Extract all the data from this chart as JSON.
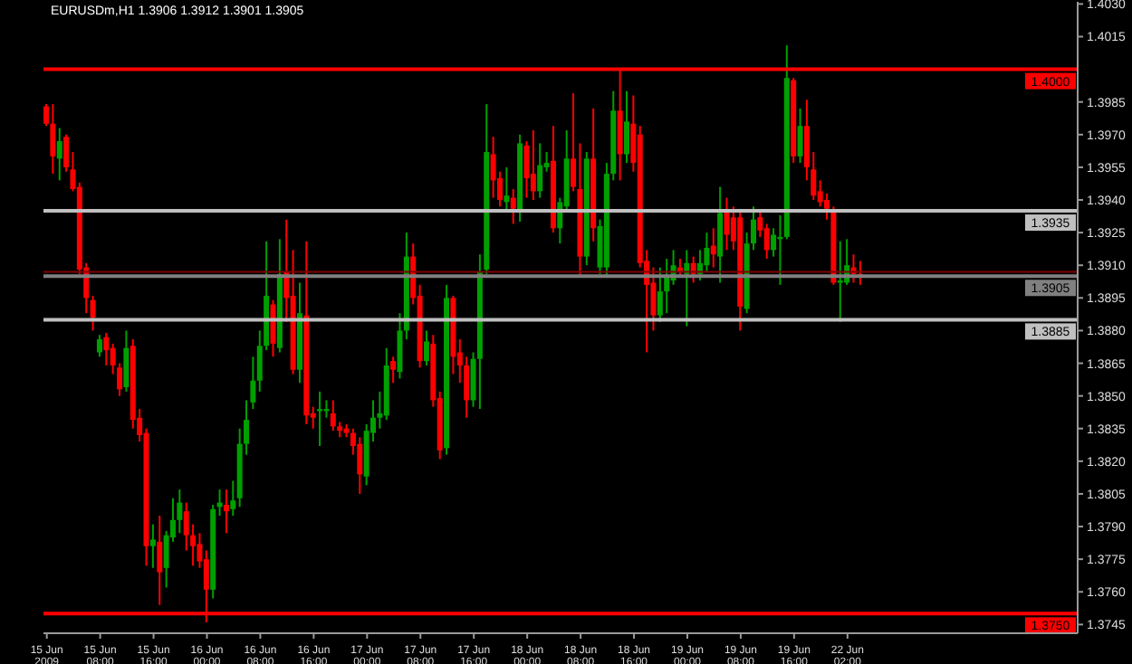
{
  "chart_data": {
    "type": "candlestick",
    "title": "EURUSDm,H1  1.3906 1.3912 1.3901 1.3905",
    "categories": [
      "15 Jun 2009",
      null,
      null,
      null,
      null,
      null,
      null,
      null,
      "15 Jun 08:00",
      null,
      null,
      null,
      null,
      null,
      null,
      null,
      "15 Jun 16:00",
      null,
      null,
      null,
      null,
      null,
      null,
      null,
      "16 Jun 00:00",
      null,
      null,
      null,
      null,
      null,
      null,
      null,
      "16 Jun 08:00",
      null,
      null,
      null,
      null,
      null,
      null,
      null,
      "16 Jun 16:00",
      null,
      null,
      null,
      null,
      null,
      null,
      null,
      "17 Jun 00:00",
      null,
      null,
      null,
      null,
      null,
      null,
      null,
      "17 Jun 08:00",
      null,
      null,
      null,
      null,
      null,
      null,
      null,
      "17 Jun 16:00",
      null,
      null,
      null,
      null,
      null,
      null,
      null,
      "18 Jun 00:00",
      null,
      null,
      null,
      null,
      null,
      null,
      null,
      "18 Jun 08:00",
      null,
      null,
      null,
      null,
      null,
      null,
      null,
      "18 Jun 16:00",
      null,
      null,
      null,
      null,
      null,
      null,
      null,
      "19 Jun 00:00",
      null,
      null,
      null,
      null,
      null,
      null,
      null,
      "19 Jun 08:00",
      null,
      null,
      null,
      null,
      null,
      null,
      null,
      "19 Jun 16:00",
      null,
      null,
      null,
      null,
      null,
      null,
      null,
      "22 Jun 02:00",
      null,
      null,
      null,
      null,
      null,
      null,
      null,
      null,
      null,
      null,
      null,
      null,
      null,
      null,
      null,
      null,
      null,
      null,
      null,
      null,
      null,
      null,
      null,
      null,
      null,
      null,
      null,
      null,
      null,
      null,
      null,
      null,
      null,
      null
    ],
    "ohlc": [
      [
        1.3983,
        1.3984,
        1.3974,
        1.3975
      ],
      [
        1.3975,
        1.3984,
        1.3952,
        1.396
      ],
      [
        1.3959,
        1.3973,
        1.3949,
        1.3967
      ],
      [
        1.3969,
        1.397,
        1.3953,
        1.3955
      ],
      [
        1.3954,
        1.3962,
        1.3944,
        1.3945
      ],
      [
        1.3946,
        1.3948,
        1.3906,
        1.3908
      ],
      [
        1.3909,
        1.3911,
        1.3888,
        1.3895
      ],
      [
        1.3894,
        1.3896,
        1.388,
        1.3886
      ],
      [
        1.387,
        1.3878,
        1.3868,
        1.3876
      ],
      [
        1.3877,
        1.3879,
        1.3864,
        1.3871
      ],
      [
        1.3872,
        1.3874,
        1.386,
        1.3864
      ],
      [
        1.3863,
        1.3865,
        1.385,
        1.3853
      ],
      [
        1.3854,
        1.388,
        1.3852,
        1.3872
      ],
      [
        1.3873,
        1.3876,
        1.3835,
        1.3839
      ],
      [
        1.384,
        1.3844,
        1.3829,
        1.3832
      ],
      [
        1.3833,
        1.3835,
        1.3772,
        1.3781
      ],
      [
        1.3781,
        1.3791,
        1.3771,
        1.3784
      ],
      [
        1.3783,
        1.3795,
        1.3754,
        1.3769
      ],
      [
        1.3771,
        1.3788,
        1.3762,
        1.3786
      ],
      [
        1.3785,
        1.3803,
        1.3783,
        1.3793
      ],
      [
        1.3793,
        1.3807,
        1.3787,
        1.3801
      ],
      [
        1.3797,
        1.3801,
        1.3779,
        1.3786
      ],
      [
        1.3786,
        1.3791,
        1.3772,
        1.3781
      ],
      [
        1.3782,
        1.3787,
        1.3771,
        1.3774
      ],
      [
        1.3775,
        1.3779,
        1.3746,
        1.3761
      ],
      [
        1.3761,
        1.38,
        1.3757,
        1.3798
      ],
      [
        1.3799,
        1.3807,
        1.3795,
        1.3801
      ],
      [
        1.38,
        1.3807,
        1.3787,
        1.3797
      ],
      [
        1.3798,
        1.3811,
        1.3795,
        1.3802
      ],
      [
        1.3803,
        1.3835,
        1.3799,
        1.3828
      ],
      [
        1.3828,
        1.3848,
        1.3823,
        1.3839
      ],
      [
        1.3847,
        1.3868,
        1.3844,
        1.3857
      ],
      [
        1.3857,
        1.388,
        1.3852,
        1.3873
      ],
      [
        1.3873,
        1.3921,
        1.3871,
        1.3896
      ],
      [
        1.3892,
        1.3894,
        1.3868,
        1.3874
      ],
      [
        1.3872,
        1.3922,
        1.387,
        1.3906
      ],
      [
        1.3907,
        1.3931,
        1.3884,
        1.3895
      ],
      [
        1.3896,
        1.3917,
        1.386,
        1.3862
      ],
      [
        1.3862,
        1.3902,
        1.3856,
        1.3888
      ],
      [
        1.3887,
        1.3921,
        1.3837,
        1.3841
      ],
      [
        1.3842,
        1.3845,
        1.3835,
        1.384
      ],
      [
        1.3843,
        1.3852,
        1.3827,
        1.3844
      ],
      [
        1.3843,
        1.3848,
        1.384,
        1.3844
      ],
      [
        1.3842,
        1.3848,
        1.3834,
        1.3836
      ],
      [
        1.3836,
        1.3838,
        1.3831,
        1.3834
      ],
      [
        1.3835,
        1.3837,
        1.3831,
        1.3833
      ],
      [
        1.3833,
        1.3835,
        1.3823,
        1.3827
      ],
      [
        1.3828,
        1.3831,
        1.3805,
        1.3814
      ],
      [
        1.3813,
        1.3837,
        1.3809,
        1.3834
      ],
      [
        1.3833,
        1.3848,
        1.3829,
        1.384
      ],
      [
        1.384,
        1.3852,
        1.3835,
        1.3842
      ],
      [
        1.3841,
        1.3872,
        1.3839,
        1.3864
      ],
      [
        1.3866,
        1.3868,
        1.3856,
        1.3862
      ],
      [
        1.3861,
        1.3888,
        1.3858,
        1.388
      ],
      [
        1.388,
        1.3925,
        1.3876,
        1.3914
      ],
      [
        1.3914,
        1.392,
        1.3892,
        1.3895
      ],
      [
        1.3896,
        1.3901,
        1.3863,
        1.3866
      ],
      [
        1.3866,
        1.388,
        1.3864,
        1.3875
      ],
      [
        1.3874,
        1.3878,
        1.3845,
        1.3848
      ],
      [
        1.3849,
        1.3852,
        1.3821,
        1.3825
      ],
      [
        1.3826,
        1.3901,
        1.3823,
        1.3895
      ],
      [
        1.3895,
        1.3896,
        1.386,
        1.3868
      ],
      [
        1.387,
        1.3876,
        1.3856,
        1.3864
      ],
      [
        1.3864,
        1.3868,
        1.384,
        1.3848
      ],
      [
        1.3848,
        1.387,
        1.3845,
        1.3867
      ],
      [
        1.3867,
        1.3915,
        1.3844,
        1.3907
      ],
      [
        1.3908,
        1.3984,
        1.3906,
        1.3962
      ],
      [
        1.3961,
        1.3969,
        1.3941,
        1.3949
      ],
      [
        1.395,
        1.3953,
        1.3937,
        1.394
      ],
      [
        1.3939,
        1.3955,
        1.3935,
        1.3942
      ],
      [
        1.3941,
        1.3945,
        1.3929,
        1.3936
      ],
      [
        1.3935,
        1.397,
        1.393,
        1.3966
      ],
      [
        1.3965,
        1.3967,
        1.3941,
        1.395
      ],
      [
        1.3952,
        1.3972,
        1.394,
        1.3944
      ],
      [
        1.3944,
        1.3966,
        1.3941,
        1.3956
      ],
      [
        1.3955,
        1.3962,
        1.3953,
        1.3957
      ],
      [
        1.3958,
        1.3974,
        1.3925,
        1.3927
      ],
      [
        1.3927,
        1.3941,
        1.392,
        1.3939
      ],
      [
        1.3937,
        1.3972,
        1.3935,
        1.3959
      ],
      [
        1.3959,
        1.3989,
        1.3944,
        1.3946
      ],
      [
        1.3945,
        1.3966,
        1.3905,
        1.3914
      ],
      [
        1.3914,
        1.3962,
        1.391,
        1.3959
      ],
      [
        1.3959,
        1.3982,
        1.3921,
        1.3927
      ],
      [
        1.3909,
        1.3931,
        1.3906,
        1.3928
      ],
      [
        1.3909,
        1.3957,
        1.3905,
        1.3952
      ],
      [
        1.3952,
        1.399,
        1.3949,
        1.3981
      ],
      [
        1.3981,
        1.4,
        1.3949,
        1.3961
      ],
      [
        1.3961,
        1.399,
        1.3957,
        1.3976
      ],
      [
        1.3975,
        1.3988,
        1.3953,
        1.3957
      ],
      [
        1.397,
        1.3974,
        1.3909,
        1.3911
      ],
      [
        1.3912,
        1.3917,
        1.387,
        1.3901
      ],
      [
        1.3902,
        1.3909,
        1.388,
        1.3887
      ],
      [
        1.3887,
        1.3909,
        1.3884,
        1.3898
      ],
      [
        1.3898,
        1.3913,
        1.3888,
        1.3905
      ],
      [
        1.3903,
        1.3917,
        1.3901,
        1.391
      ],
      [
        1.3909,
        1.3913,
        1.3905,
        1.3907
      ],
      [
        1.3906,
        1.3917,
        1.3882,
        1.3911
      ],
      [
        1.3911,
        1.3914,
        1.3902,
        1.3906
      ],
      [
        1.3906,
        1.3917,
        1.3903,
        1.3911
      ],
      [
        1.391,
        1.3925,
        1.3907,
        1.3918
      ],
      [
        1.3919,
        1.3927,
        1.3909,
        1.3915
      ],
      [
        1.3914,
        1.3946,
        1.3902,
        1.3934
      ],
      [
        1.3935,
        1.3941,
        1.3917,
        1.3924
      ],
      [
        1.3932,
        1.3937,
        1.3917,
        1.3921
      ],
      [
        1.3932,
        1.3935,
        1.388,
        1.3891
      ],
      [
        1.389,
        1.3925,
        1.3888,
        1.392
      ],
      [
        1.392,
        1.3937,
        1.3917,
        1.3931
      ],
      [
        1.3932,
        1.3935,
        1.3923,
        1.3926
      ],
      [
        1.3927,
        1.3929,
        1.3913,
        1.3917
      ],
      [
        1.3917,
        1.3927,
        1.3914,
        1.3924
      ],
      [
        1.3922,
        1.3933,
        1.3901,
        1.3923
      ],
      [
        1.3923,
        1.4011,
        1.3922,
        1.3996
      ],
      [
        1.3995,
        1.3996,
        1.3957,
        1.396
      ],
      [
        1.396,
        1.3982,
        1.3957,
        1.3974
      ],
      [
        1.3974,
        1.3986,
        1.3949,
        1.3955
      ],
      [
        1.3954,
        1.3962,
        1.394,
        1.3942
      ],
      [
        1.3944,
        1.3949,
        1.3937,
        1.3939
      ],
      [
        1.394,
        1.3943,
        1.3931,
        1.3936
      ],
      [
        1.3935,
        1.3937,
        1.3901,
        1.3902
      ],
      [
        1.3902,
        1.3921,
        1.3884,
        1.3903
      ],
      [
        1.3902,
        1.3922,
        1.3901,
        1.391
      ],
      [
        1.3909,
        1.3915,
        1.3902,
        1.3906
      ],
      [
        1.3906,
        1.3912,
        1.3901,
        1.3905
      ],
      null,
      null,
      null,
      null,
      null,
      null,
      null,
      null,
      null,
      null,
      null,
      null,
      null,
      null,
      null,
      null,
      null,
      null,
      null,
      null,
      null,
      null,
      null,
      null,
      null,
      null,
      null,
      null,
      null,
      null,
      null,
      null
    ],
    "colors": [
      "#ff0000",
      "#ff0000",
      "#00a000",
      "#ff0000",
      "#ff0000",
      "#ff0000",
      "#ff0000",
      "#ff0000",
      "#00a000",
      "#ff0000",
      "#ff0000",
      "#ff0000",
      "#00a000",
      "#ff0000",
      "#ff0000",
      "#ff0000",
      "#00a000",
      "#ff0000",
      "#00a000",
      "#00a000",
      "#00a000",
      "#ff0000",
      "#ff0000",
      "#ff0000",
      "#ff0000",
      "#00a000",
      "#00a000",
      "#ff0000",
      "#00a000",
      "#00a000",
      "#00a000",
      "#00a000",
      "#00a000",
      "#00a000",
      "#ff0000",
      "#00a000",
      "#ff0000",
      "#ff0000",
      "#00a000",
      "#ff0000",
      "#ff0000",
      "#00a000",
      "#00a000",
      "#ff0000",
      "#ff0000",
      "#ff0000",
      "#ff0000",
      "#ff0000",
      "#00a000",
      "#00a000",
      "#00a000",
      "#00a000",
      "#ff0000",
      "#00a000",
      "#00a000",
      "#ff0000",
      "#ff0000",
      "#00a000",
      "#ff0000",
      "#ff0000",
      "#00a000",
      "#ff0000",
      "#ff0000",
      "#ff0000",
      "#00a000",
      "#00a000",
      "#00a000",
      "#ff0000",
      "#ff0000",
      "#00a000",
      "#ff0000",
      "#00a000",
      "#ff0000",
      "#ff0000",
      "#00a000",
      "#00a000",
      "#ff0000",
      "#00a000",
      "#00a000",
      "#ff0000",
      "#ff0000",
      "#00a000",
      "#ff0000",
      "#00a000",
      "#00a000",
      "#00a000",
      "#ff0000",
      "#00a000",
      "#ff0000",
      "#ff0000",
      "#ff0000",
      "#ff0000",
      "#00a000",
      "#00a000",
      "#00a000",
      "#ff0000",
      "#00a000",
      "#ff0000",
      "#00a000",
      "#00a000",
      "#ff0000",
      "#00a000",
      "#ff0000",
      "#ff0000",
      "#ff0000",
      "#00a000",
      "#00a000",
      "#ff0000",
      "#ff0000",
      "#00a000",
      "#00a000",
      "#00a000",
      "#ff0000",
      "#00a000",
      "#ff0000",
      "#ff0000",
      "#ff0000",
      "#ff0000",
      "#ff0000",
      "#00a000",
      "#00a000",
      "#ff0000",
      "#ff0000",
      null,
      null,
      null,
      null,
      null,
      null,
      null,
      null,
      null,
      null,
      null,
      null,
      null,
      null,
      null,
      null,
      null,
      null,
      null,
      null,
      null,
      null,
      null,
      null,
      null,
      null,
      null,
      null,
      null,
      null,
      null,
      null
    ],
    "ylim": [
      1.3741,
      1.4031
    ],
    "yticks": [
      {
        "value": 1.403,
        "label": "1.4030"
      },
      {
        "value": 1.4015,
        "label": "1.4015"
      },
      {
        "value": 1.3985,
        "label": "1.3985"
      },
      {
        "value": 1.397,
        "label": "1.3970"
      },
      {
        "value": 1.3955,
        "label": "1.3955"
      },
      {
        "value": 1.394,
        "label": "1.3940"
      },
      {
        "value": 1.3925,
        "label": "1.3925"
      },
      {
        "value": 1.391,
        "label": "1.3910"
      },
      {
        "value": 1.3895,
        "label": "1.3895"
      },
      {
        "value": 1.388,
        "label": "1.3880"
      },
      {
        "value": 1.3865,
        "label": "1.3865"
      },
      {
        "value": 1.385,
        "label": "1.3850"
      },
      {
        "value": 1.3835,
        "label": "1.3835"
      },
      {
        "value": 1.382,
        "label": "1.3820"
      },
      {
        "value": 1.3805,
        "label": "1.3805"
      },
      {
        "value": 1.379,
        "label": "1.3790"
      },
      {
        "value": 1.3775,
        "label": "1.3775"
      },
      {
        "value": 1.376,
        "label": "1.3760"
      },
      {
        "value": 1.3745,
        "label": "1.3745"
      }
    ],
    "ref_lines": [
      {
        "axis": "y",
        "value": 1.4,
        "label": "1.4000",
        "color": "#ff0000"
      },
      {
        "axis": "y",
        "value": 1.3935,
        "label": "1.3935",
        "color": "#c0c0c0"
      },
      {
        "axis": "y",
        "value": 1.3907,
        "label": null,
        "color": "#800000"
      },
      {
        "axis": "y",
        "value": 1.3905,
        "label": "1.3905",
        "color": "#808080"
      },
      {
        "axis": "y",
        "value": 1.3885,
        "label": "1.3885",
        "color": "#c0c0c0"
      },
      {
        "axis": "y",
        "value": 1.375,
        "label": "1.3750",
        "color": "#ff0000"
      }
    ]
  }
}
